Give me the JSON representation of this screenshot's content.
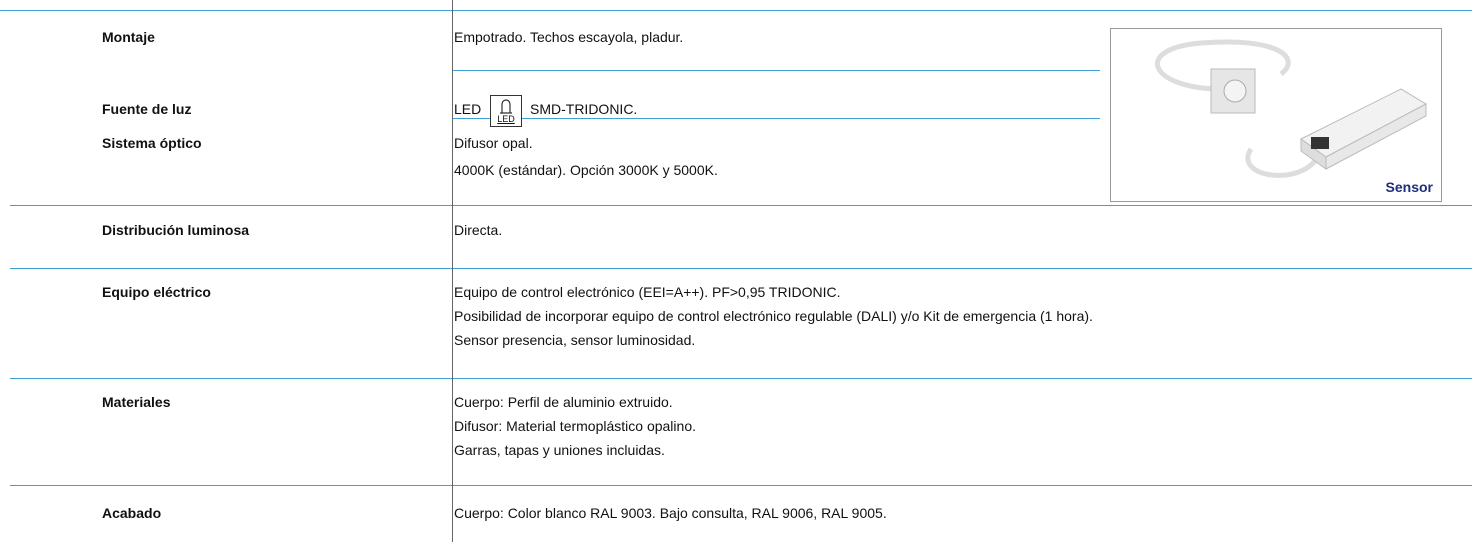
{
  "rows": [
    {
      "label": "Montaje",
      "lines": [
        "Empotrado. Techos escayola, pladur."
      ]
    },
    {
      "label": "Fuente de luz",
      "lines": [
        "LED",
        "SMD-TRIDONIC."
      ],
      "icon_label": "LED"
    },
    {
      "label": "Sistema óptico",
      "lines": [
        "Difusor opal.",
        "4000K (estándar). Opción 3000K y 5000K."
      ]
    },
    {
      "label": "Distribución luminosa",
      "lines": [
        "Directa."
      ]
    },
    {
      "label": "Equipo eléctrico",
      "lines": [
        "Equipo de control electrónico (EEI=A++). PF>0,95 TRIDONIC.",
        "Posibilidad de incorporar equipo de control electrónico regulable (DALI) y/o Kit de emergencia (1 hora).",
        "Sensor presencia, sensor luminosidad."
      ]
    },
    {
      "label": "Materiales",
      "lines": [
        "Cuerpo: Perfil de aluminio extruido.",
        "Difusor: Material termoplástico opalino.",
        "Garras, tapas y uniones incluidas."
      ]
    },
    {
      "label": "Acabado",
      "lines": [
        "Cuerpo: Color blanco RAL 9003. Bajo consulta, RAL 9006, RAL 9005."
      ]
    }
  ],
  "image": {
    "caption": "Sensor"
  }
}
